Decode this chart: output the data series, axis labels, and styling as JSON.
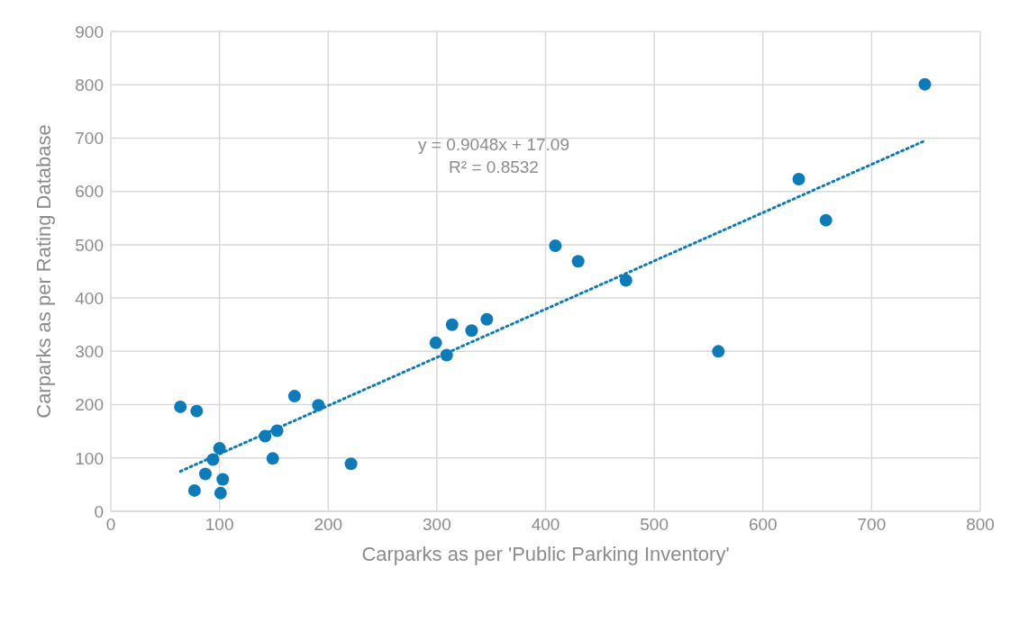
{
  "chart_data": {
    "type": "scatter",
    "xlabel": "Carparks as per 'Public Parking Inventory'",
    "ylabel": "Carparks as per Rating Database",
    "xlim": [
      0,
      800
    ],
    "xticks": [
      0,
      100,
      200,
      300,
      400,
      500,
      600,
      700,
      800
    ],
    "ylim": [
      0,
      900
    ],
    "yticks": [
      0,
      100,
      200,
      300,
      400,
      500,
      600,
      700,
      800,
      900
    ],
    "grid": true,
    "marker": "circle",
    "annotations": [
      "y = 0.9048x + 17.09",
      "R² = 0.8532"
    ],
    "series": [
      {
        "color": "#0e7bb8",
        "x": [
          64,
          79,
          100,
          94,
          87,
          77,
          103,
          101,
          142,
          153,
          149,
          169,
          191,
          221,
          299,
          309,
          314,
          332,
          346,
          409,
          430,
          474,
          559,
          633,
          658,
          749
        ],
        "values": [
          196,
          188,
          118,
          97,
          70,
          39,
          60,
          34,
          141,
          151,
          99,
          216,
          199,
          89,
          316,
          293,
          350,
          339,
          360,
          498,
          469,
          433,
          300,
          623,
          546,
          801
        ]
      },
      {
        "type": "line",
        "color": "#0e7bb8",
        "line_style": "dotted",
        "marker": "none",
        "x": [
          64,
          750
        ],
        "values": [
          75,
          696
        ]
      }
    ]
  }
}
